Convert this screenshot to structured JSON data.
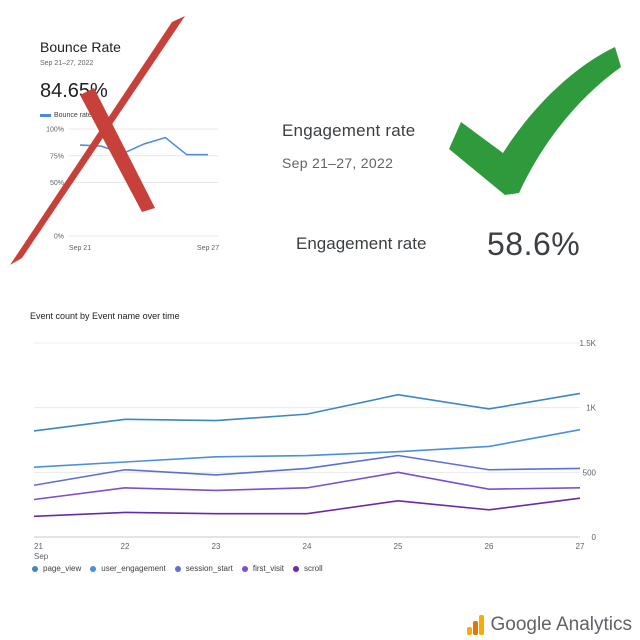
{
  "bounce_card": {
    "title": "Bounce Rate",
    "date_range": "Sep 21–27, 2022",
    "value": "84.65%",
    "legend_label": "Bounce rate",
    "cross_color": "#c8403a"
  },
  "engagement": {
    "title": "Engagement rate",
    "date_range": "Sep 21–27, 2022",
    "metric_label": "Engagement rate",
    "metric_value": "58.6%",
    "check_color": "#2e9a3c"
  },
  "event_chart": {
    "title": "Event count by Event name over time",
    "month_label": "Sep"
  },
  "chart_data": [
    {
      "type": "line",
      "title": "Bounce Rate",
      "categories": [
        "Sep 21",
        "",
        "",
        "",
        "",
        "",
        "Sep 27"
      ],
      "yticks": [
        "100%",
        "75%",
        "50%",
        "0%"
      ],
      "ylim": [
        0,
        100
      ],
      "series": [
        {
          "name": "Bounce rate",
          "color": "#4a89dc",
          "values": [
            85,
            84,
            77,
            86,
            92,
            76,
            76
          ]
        }
      ],
      "grid": true
    },
    {
      "type": "line",
      "title": "Event count by Event name over time",
      "categories": [
        "21",
        "22",
        "23",
        "24",
        "25",
        "26",
        "27"
      ],
      "yticks": [
        "1.5K",
        "1K",
        "500",
        "0"
      ],
      "ylim": [
        0,
        1500
      ],
      "grid": true,
      "legend": "bottom-left",
      "series": [
        {
          "name": "page_view",
          "color": "#3e86c4",
          "values": [
            820,
            910,
            900,
            950,
            1100,
            990,
            1110
          ]
        },
        {
          "name": "user_engagement",
          "color": "#4a8fde",
          "values": [
            540,
            580,
            620,
            630,
            660,
            700,
            830
          ]
        },
        {
          "name": "session_start",
          "color": "#5c6fd6",
          "values": [
            400,
            520,
            480,
            530,
            630,
            520,
            530
          ]
        },
        {
          "name": "first_visit",
          "color": "#7b4fd0",
          "values": [
            290,
            380,
            360,
            380,
            500,
            370,
            380
          ]
        },
        {
          "name": "scroll",
          "color": "#6a2aa8",
          "values": [
            160,
            190,
            180,
            180,
            280,
            210,
            300
          ]
        }
      ]
    }
  ],
  "logo": {
    "text": "Google Analytics",
    "bar_colors": [
      "#f9ab00",
      "#e37400",
      "#f9ab00"
    ]
  }
}
